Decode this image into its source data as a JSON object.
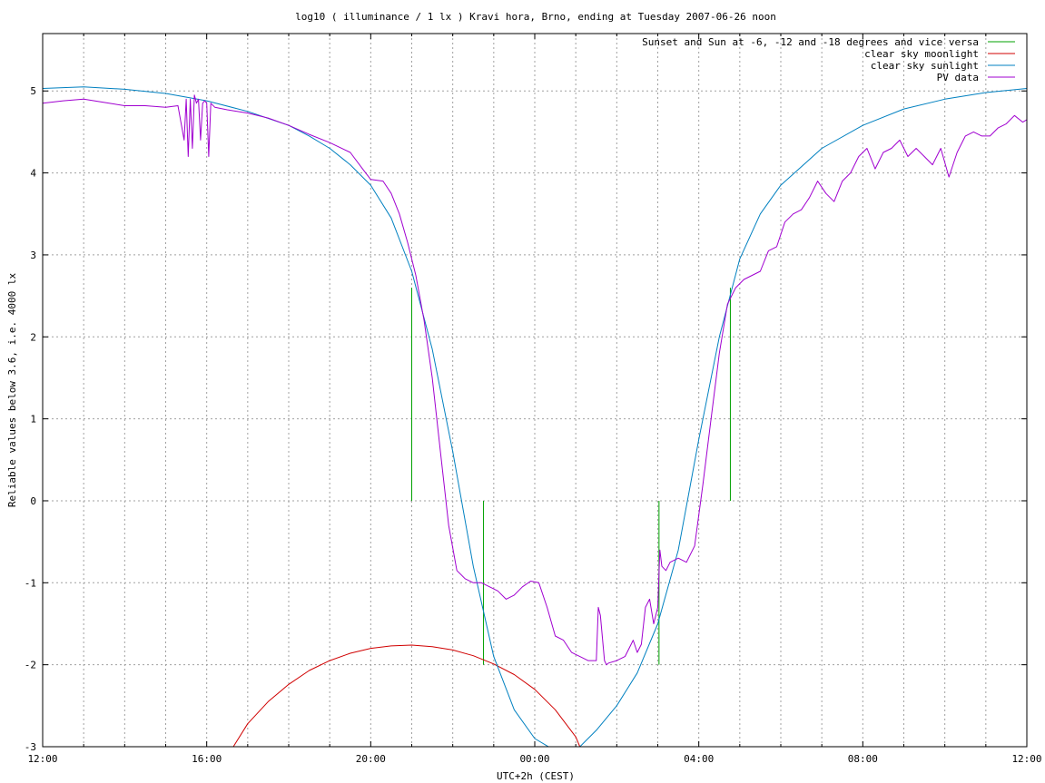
{
  "chart_data": {
    "type": "line",
    "title": "log10 ( illuminance / 1 lx ) Kravi hora, Brno, ending at Tuesday 2007-06-26 noon",
    "xlabel": "UTC+2h (CEST)",
    "ylabel": "Reliable values below 3.6, i.e. 4000 lx",
    "xlim": [
      0,
      24
    ],
    "ylim": [
      -3,
      5.7
    ],
    "x_ticks": [
      {
        "v": 0,
        "label": "12:00"
      },
      {
        "v": 4,
        "label": "16:00"
      },
      {
        "v": 8,
        "label": "20:00"
      },
      {
        "v": 12,
        "label": "00:00"
      },
      {
        "v": 16,
        "label": "04:00"
      },
      {
        "v": 20,
        "label": "08:00"
      },
      {
        "v": 24,
        "label": "12:00"
      }
    ],
    "y_ticks": [
      {
        "v": 5,
        "label": "5"
      },
      {
        "v": 4,
        "label": "4"
      },
      {
        "v": 3,
        "label": "3"
      },
      {
        "v": 2,
        "label": "2"
      },
      {
        "v": 1,
        "label": "1"
      },
      {
        "v": 0,
        "label": "0"
      },
      {
        "v": -1,
        "label": "-1"
      },
      {
        "v": -2,
        "label": "-2"
      },
      {
        "v": -3,
        "label": "-3"
      }
    ],
    "grid": true,
    "legend_position": "top-right",
    "series": [
      {
        "name": "Sunset and Sun at -6, -12 and -18 degrees and vice versa",
        "color": "#00a000",
        "kind": "vlines",
        "lines": [
          {
            "x": 9.0,
            "y0": 0,
            "y1": 2.6
          },
          {
            "x": 10.75,
            "y0": -2.0,
            "y1": 0
          },
          {
            "x": 15.03,
            "y0": -2.0,
            "y1": 0
          },
          {
            "x": 16.77,
            "y0": 0,
            "y1": 2.6
          }
        ]
      },
      {
        "name": "clear sky moonlight",
        "color": "#d00000",
        "kind": "line",
        "x": [
          4.65,
          5.0,
          5.5,
          6.0,
          6.5,
          7.0,
          7.5,
          8.0,
          8.5,
          9.0,
          9.5,
          10.0,
          10.5,
          11.0,
          11.5,
          12.0,
          12.5,
          13.0,
          13.1
        ],
        "y": [
          -3.0,
          -2.72,
          -2.45,
          -2.24,
          -2.07,
          -1.95,
          -1.86,
          -1.8,
          -1.77,
          -1.76,
          -1.78,
          -1.82,
          -1.89,
          -1.99,
          -2.12,
          -2.3,
          -2.55,
          -2.88,
          -3.0
        ]
      },
      {
        "name": "clear sky sunlight",
        "color": "#0080c0",
        "kind": "line",
        "x": [
          0,
          1,
          2,
          3,
          4,
          5,
          6,
          6.5,
          7,
          7.5,
          8,
          8.5,
          9,
          9.5,
          10,
          10.5,
          11,
          11.5,
          12,
          12.5,
          13,
          13.5,
          14,
          14.5,
          15,
          15.5,
          16,
          16.5,
          17,
          17.5,
          18,
          19,
          20,
          21,
          22,
          23,
          24
        ],
        "y": [
          5.03,
          5.05,
          5.02,
          4.97,
          4.88,
          4.75,
          4.58,
          4.45,
          4.3,
          4.1,
          3.85,
          3.45,
          2.8,
          1.85,
          0.6,
          -0.8,
          -1.9,
          -2.55,
          -2.9,
          -3.05,
          -3.05,
          -2.8,
          -2.5,
          -2.1,
          -1.5,
          -0.6,
          0.75,
          2.0,
          2.95,
          3.5,
          3.85,
          4.3,
          4.58,
          4.78,
          4.9,
          4.98,
          5.03
        ]
      },
      {
        "name": "PV data",
        "color": "#a000d0",
        "kind": "line",
        "x": [
          0,
          0.5,
          1,
          1.5,
          2,
          2.5,
          3,
          3.3,
          3.45,
          3.5,
          3.55,
          3.6,
          3.65,
          3.7,
          3.75,
          3.8,
          3.85,
          3.9,
          3.95,
          4.0,
          4.05,
          4.1,
          4.2,
          4.5,
          5,
          5.5,
          6,
          6.5,
          7,
          7.5,
          7.8,
          8.0,
          8.3,
          8.5,
          8.7,
          8.9,
          9.1,
          9.3,
          9.5,
          9.7,
          9.9,
          10.1,
          10.3,
          10.5,
          10.7,
          10.9,
          11.1,
          11.3,
          11.5,
          11.7,
          11.9,
          12.1,
          12.3,
          12.5,
          12.7,
          12.9,
          13.1,
          13.3,
          13.5,
          13.55,
          13.6,
          13.7,
          13.75,
          13.8,
          14.0,
          14.2,
          14.4,
          14.5,
          14.6,
          14.7,
          14.8,
          14.9,
          15.0,
          15.05,
          15.1,
          15.2,
          15.3,
          15.5,
          15.7,
          15.9,
          16.1,
          16.3,
          16.5,
          16.7,
          16.9,
          17.1,
          17.3,
          17.5,
          17.7,
          17.9,
          18.1,
          18.3,
          18.5,
          18.7,
          18.9,
          19.1,
          19.3,
          19.5,
          19.7,
          19.9,
          20.1,
          20.3,
          20.5,
          20.7,
          20.9,
          21.1,
          21.3,
          21.5,
          21.7,
          21.9,
          22.1,
          22.3,
          22.5,
          22.7,
          22.9,
          23.1,
          23.3,
          23.5,
          23.7,
          23.9,
          24
        ],
        "y": [
          4.85,
          4.88,
          4.9,
          4.86,
          4.82,
          4.82,
          4.8,
          4.82,
          4.4,
          4.9,
          4.2,
          4.9,
          4.3,
          4.95,
          4.85,
          4.9,
          4.4,
          4.85,
          4.88,
          4.85,
          4.2,
          4.85,
          4.8,
          4.77,
          4.73,
          4.67,
          4.58,
          4.47,
          4.37,
          4.25,
          4.05,
          3.92,
          3.9,
          3.75,
          3.5,
          3.15,
          2.75,
          2.2,
          1.5,
          0.6,
          -0.3,
          -0.85,
          -0.95,
          -1.0,
          -1.0,
          -1.05,
          -1.1,
          -1.2,
          -1.15,
          -1.05,
          -0.98,
          -1.0,
          -1.3,
          -1.65,
          -1.7,
          -1.85,
          -1.9,
          -1.95,
          -1.95,
          -1.3,
          -1.4,
          -1.95,
          -2.0,
          -1.98,
          -1.95,
          -1.9,
          -1.7,
          -1.85,
          -1.75,
          -1.3,
          -1.2,
          -1.5,
          -1.3,
          -0.6,
          -0.8,
          -0.85,
          -0.75,
          -0.7,
          -0.75,
          -0.55,
          0.2,
          1.0,
          1.8,
          2.4,
          2.6,
          2.7,
          2.75,
          2.8,
          3.05,
          3.1,
          3.4,
          3.5,
          3.55,
          3.7,
          3.9,
          3.75,
          3.65,
          3.9,
          4.0,
          4.2,
          4.3,
          4.05,
          4.25,
          4.3,
          4.4,
          4.2,
          4.3,
          4.2,
          4.1,
          4.3,
          3.95,
          4.25,
          4.45,
          4.5,
          4.45,
          4.45,
          4.55,
          4.6,
          4.7,
          4.62,
          4.65
        ]
      }
    ]
  }
}
